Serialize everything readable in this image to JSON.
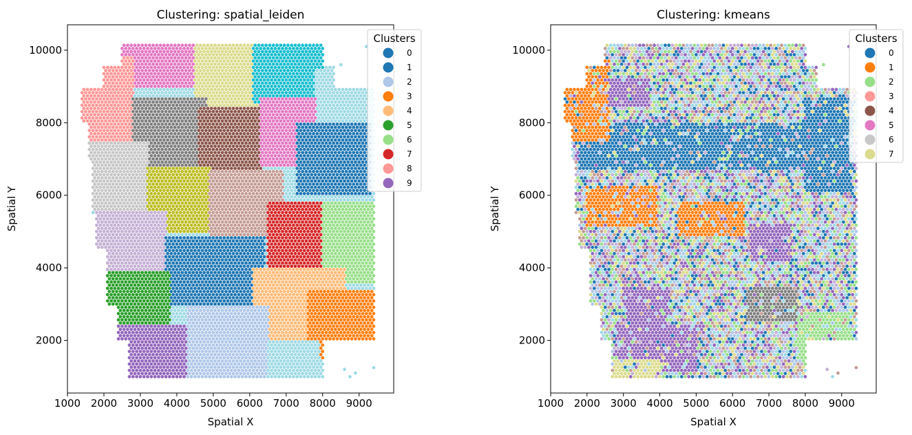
{
  "chart_data": [
    {
      "type": "scatter",
      "title": "Clustering: spatial_leiden",
      "xlabel": "Spatial X",
      "ylabel": "Spatial Y",
      "xlim": [
        1000,
        9950
      ],
      "ylim": [
        550,
        10700
      ],
      "x_ticks": [
        1000,
        2000,
        3000,
        4000,
        5000,
        6000,
        7000,
        8000,
        9000
      ],
      "y_ticks": [
        2000,
        4000,
        6000,
        8000,
        10000
      ],
      "grid": false,
      "legend": {
        "title": "Clusters",
        "placement": "top-right",
        "entries": [
          {
            "label": "0",
            "color": "#1f77b4"
          },
          {
            "label": "1",
            "color": "#1f77b4"
          },
          {
            "label": "2",
            "color": "#aec7e8"
          },
          {
            "label": "3",
            "color": "#ff7f0e"
          },
          {
            "label": "4",
            "color": "#ffbb78"
          },
          {
            "label": "5",
            "color": "#2ca02c"
          },
          {
            "label": "6",
            "color": "#98df8a"
          },
          {
            "label": "7",
            "color": "#d62728"
          },
          {
            "label": "8",
            "color": "#ff9896"
          },
          {
            "label": "9",
            "color": "#9467bd"
          }
        ]
      },
      "regions": [
        {
          "color": "#e377c2",
          "ymin": 9000,
          "ymax": 10200,
          "xmin": 2200,
          "xmax": 4700
        },
        {
          "color": "#ff9896",
          "ymin": 7200,
          "ymax": 9800,
          "xmin": 1400,
          "xmax": 2800
        },
        {
          "color": "#dbdb8d",
          "ymin": 8300,
          "ymax": 10200,
          "xmin": 4500,
          "xmax": 6200
        },
        {
          "color": "#17becf",
          "ymin": 8500,
          "ymax": 10200,
          "xmin": 6100,
          "xmax": 8000
        },
        {
          "color": "#9edae5",
          "ymin": 7500,
          "ymax": 9500,
          "xmin": 7800,
          "xmax": 9500
        },
        {
          "color": "#7f7f7f",
          "ymin": 6800,
          "ymax": 8700,
          "xmin": 2800,
          "xmax": 4800
        },
        {
          "color": "#8c564b",
          "ymin": 6500,
          "ymax": 8400,
          "xmin": 4600,
          "xmax": 6300
        },
        {
          "color": "#e377c2",
          "ymin": 6800,
          "ymax": 8700,
          "xmin": 6300,
          "xmax": 7800
        },
        {
          "color": "#1f77b4",
          "ymin": 6000,
          "ymax": 8000,
          "xmin": 7300,
          "xmax": 9300
        },
        {
          "color": "#c7c7c7",
          "ymin": 5600,
          "ymax": 7500,
          "xmin": 1600,
          "xmax": 3200
        },
        {
          "color": "#bcbd22",
          "ymin": 5000,
          "ymax": 6800,
          "xmin": 3200,
          "xmax": 4900
        },
        {
          "color": "#c49c94",
          "ymin": 4900,
          "ymax": 6700,
          "xmin": 4900,
          "xmax": 6900
        },
        {
          "color": "#c5b0d5",
          "ymin": 3800,
          "ymax": 5600,
          "xmin": 1800,
          "xmax": 3700
        },
        {
          "color": "#d62728",
          "ymin": 4000,
          "ymax": 5800,
          "xmin": 6500,
          "xmax": 8000
        },
        {
          "color": "#98df8a",
          "ymin": 3600,
          "ymax": 5800,
          "xmin": 8000,
          "xmax": 9400
        },
        {
          "color": "#1f77b4",
          "ymin": 3000,
          "ymax": 4900,
          "xmin": 3700,
          "xmax": 6400
        },
        {
          "color": "#2ca02c",
          "ymin": 2400,
          "ymax": 3900,
          "xmin": 2100,
          "xmax": 3800
        },
        {
          "color": "#ffbb78",
          "ymin": 2000,
          "ymax": 4000,
          "xmin": 6100,
          "xmax": 8600
        },
        {
          "color": "#ff7f0e",
          "ymin": 1500,
          "ymax": 3400,
          "xmin": 7600,
          "xmax": 9400
        },
        {
          "color": "#9467bd",
          "ymin": 1000,
          "ymax": 2400,
          "xmin": 2400,
          "xmax": 5000
        },
        {
          "color": "#aec7e8",
          "ymin": 1000,
          "ymax": 3000,
          "xmin": 4300,
          "xmax": 6500
        },
        {
          "color": "#9edae5",
          "ymin": 1000,
          "ymax": 2000,
          "xmin": 6500,
          "xmax": 7900
        }
      ]
    },
    {
      "type": "scatter",
      "title": "Clustering: kmeans",
      "xlabel": "Spatial X",
      "ylabel": "Spatial Y",
      "xlim": [
        1000,
        9950
      ],
      "ylim": [
        550,
        10700
      ],
      "x_ticks": [
        1000,
        2000,
        3000,
        4000,
        5000,
        6000,
        7000,
        8000,
        9000
      ],
      "y_ticks": [
        2000,
        4000,
        6000,
        8000,
        10000
      ],
      "grid": false,
      "legend": {
        "title": "Clusters",
        "placement": "top-right",
        "entries": [
          {
            "label": "0",
            "color": "#1f77b4"
          },
          {
            "label": "1",
            "color": "#ff7f0e"
          },
          {
            "label": "2",
            "color": "#98df8a"
          },
          {
            "label": "3",
            "color": "#ff9896"
          },
          {
            "label": "4",
            "color": "#8c564b"
          },
          {
            "label": "5",
            "color": "#e377c2"
          },
          {
            "label": "6",
            "color": "#c7c7c7"
          },
          {
            "label": "7",
            "color": "#dbdb8d"
          }
        ]
      },
      "regions": [
        {
          "color": "#1f77b4",
          "ymin": 6700,
          "ymax": 8000,
          "xmin": 1800,
          "xmax": 8000
        },
        {
          "color": "#1f77b4",
          "ymin": 6100,
          "ymax": 8700,
          "xmin": 8000,
          "xmax": 9300
        },
        {
          "color": "#ff7f0e",
          "ymin": 5100,
          "ymax": 6300,
          "xmin": 2000,
          "xmax": 3900
        },
        {
          "color": "#ff7f0e",
          "ymin": 4900,
          "ymax": 5800,
          "xmin": 4500,
          "xmax": 6300
        },
        {
          "color": "#ff7f0e",
          "ymin": 7500,
          "ymax": 9800,
          "xmin": 1400,
          "xmax": 2600
        },
        {
          "color": "#9467bd",
          "ymin": 1100,
          "ymax": 2400,
          "xmin": 2800,
          "xmax": 5000
        },
        {
          "color": "#9467bd",
          "ymin": 2400,
          "ymax": 3500,
          "xmin": 3000,
          "xmax": 4200
        },
        {
          "color": "#7f7f7f",
          "ymin": 2500,
          "ymax": 3500,
          "xmin": 6400,
          "xmax": 7800
        },
        {
          "color": "#9467bd",
          "ymin": 8400,
          "ymax": 9200,
          "xmin": 2600,
          "xmax": 3700
        },
        {
          "color": "#98df8a",
          "ymin": 1500,
          "ymax": 2800,
          "xmin": 7800,
          "xmax": 9300
        },
        {
          "color": "#dbdb8d",
          "ymin": 1000,
          "ymax": 1500,
          "xmin": 2700,
          "xmax": 4000
        },
        {
          "color": "#9467bd",
          "ymin": 4200,
          "ymax": 5200,
          "xmin": 6500,
          "xmax": 7600
        }
      ]
    }
  ]
}
